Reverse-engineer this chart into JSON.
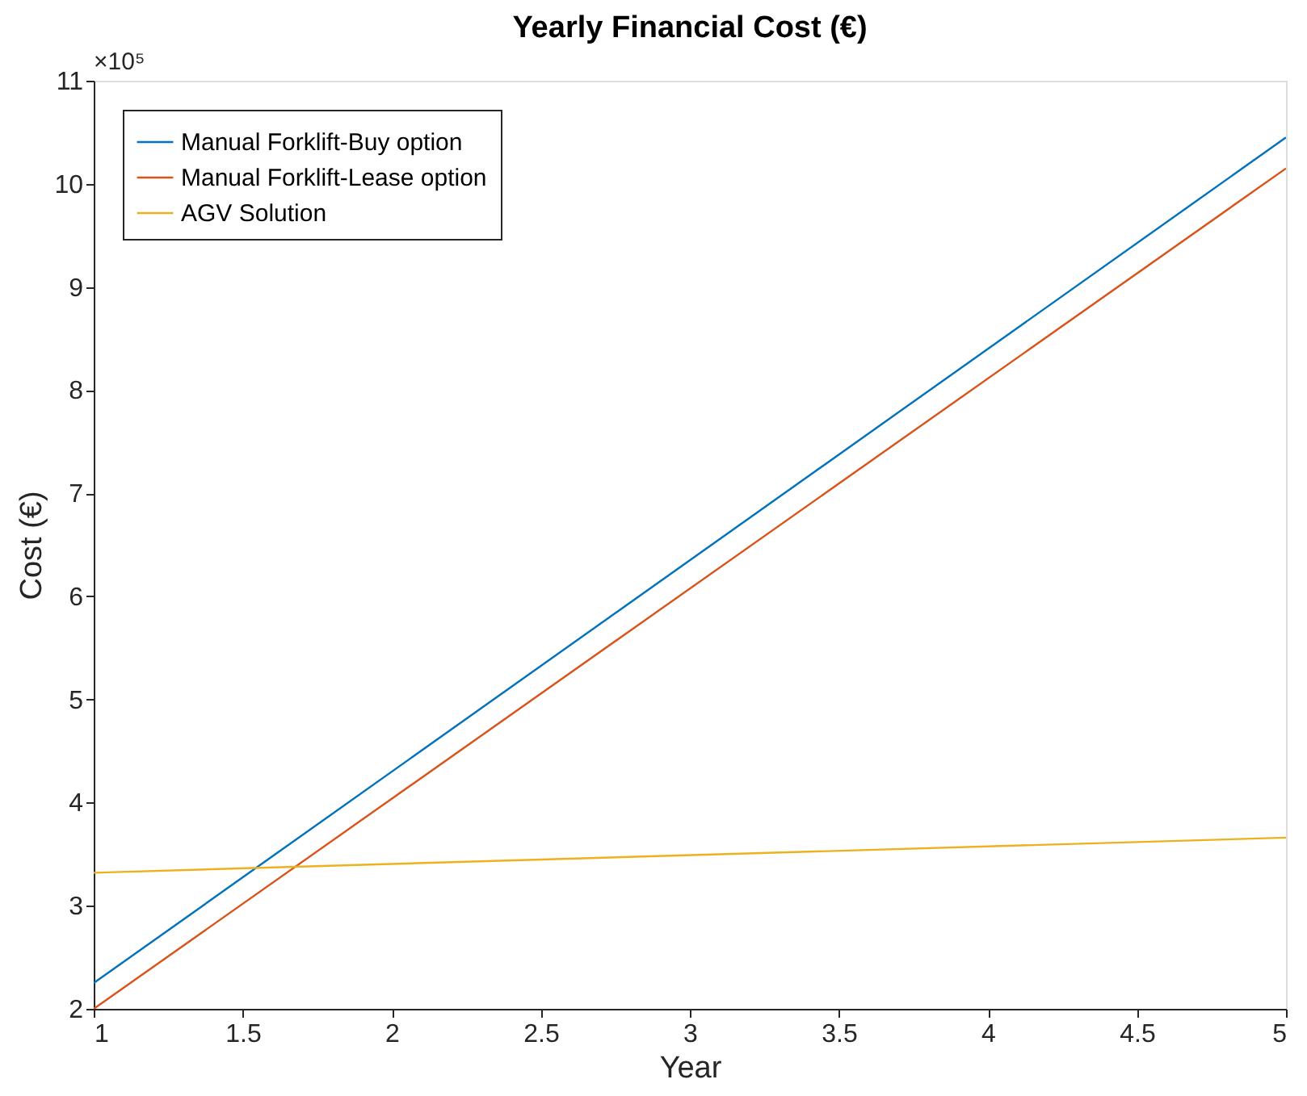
{
  "chart_data": {
    "type": "line",
    "title": "Yearly Financial Cost (€)",
    "xlabel": "Year",
    "ylabel": "Cost (€)",
    "annotations": [
      "×10⁵"
    ],
    "x": [
      1,
      5
    ],
    "series": [
      {
        "name": "Manual Forklift-Buy option",
        "color": "#0072bd",
        "values": [
          2.25,
          10.45
        ]
      },
      {
        "name": "Manual Forklift-Lease option",
        "color": "#d95319",
        "values": [
          2.0,
          10.15
        ]
      },
      {
        "name": "AGV Solution",
        "color": "#edb120",
        "values": [
          3.32,
          3.66
        ]
      }
    ],
    "xlim": [
      1,
      5
    ],
    "xticks": [
      1,
      1.5,
      2,
      2.5,
      3,
      3.5,
      4,
      4.5,
      5
    ],
    "ylim": [
      2,
      11
    ],
    "yticks": [
      2,
      3,
      4,
      5,
      6,
      7,
      8,
      9,
      10,
      11
    ],
    "grid": false,
    "legend": "top left",
    "marker": "none",
    "line_style": "solid"
  }
}
